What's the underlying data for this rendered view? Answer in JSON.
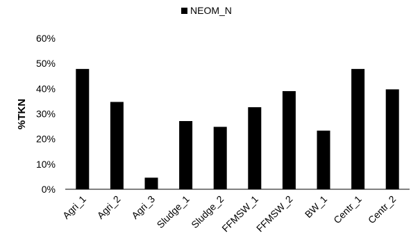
{
  "chart_data": {
    "type": "bar",
    "title": "",
    "xlabel": "",
    "ylabel": "%TKN",
    "ylim": [
      0,
      60
    ],
    "yticks": [
      "0%",
      "10%",
      "20%",
      "30%",
      "40%",
      "50%",
      "60%"
    ],
    "grid": false,
    "legend_position": "top-center",
    "categories": [
      "Agri_1",
      "Agri_2",
      "Agri_3",
      "Sludge_1",
      "Sludge_2",
      "FFMSW_1",
      "FFMSW_2",
      "BW_1",
      "Centr_1",
      "Centr_2"
    ],
    "series": [
      {
        "name": "NEOM_N",
        "color": "#000000",
        "values": [
          47.8,
          34.7,
          4.6,
          27.1,
          24.8,
          32.6,
          39.0,
          23.3,
          47.8,
          39.7
        ]
      }
    ]
  }
}
